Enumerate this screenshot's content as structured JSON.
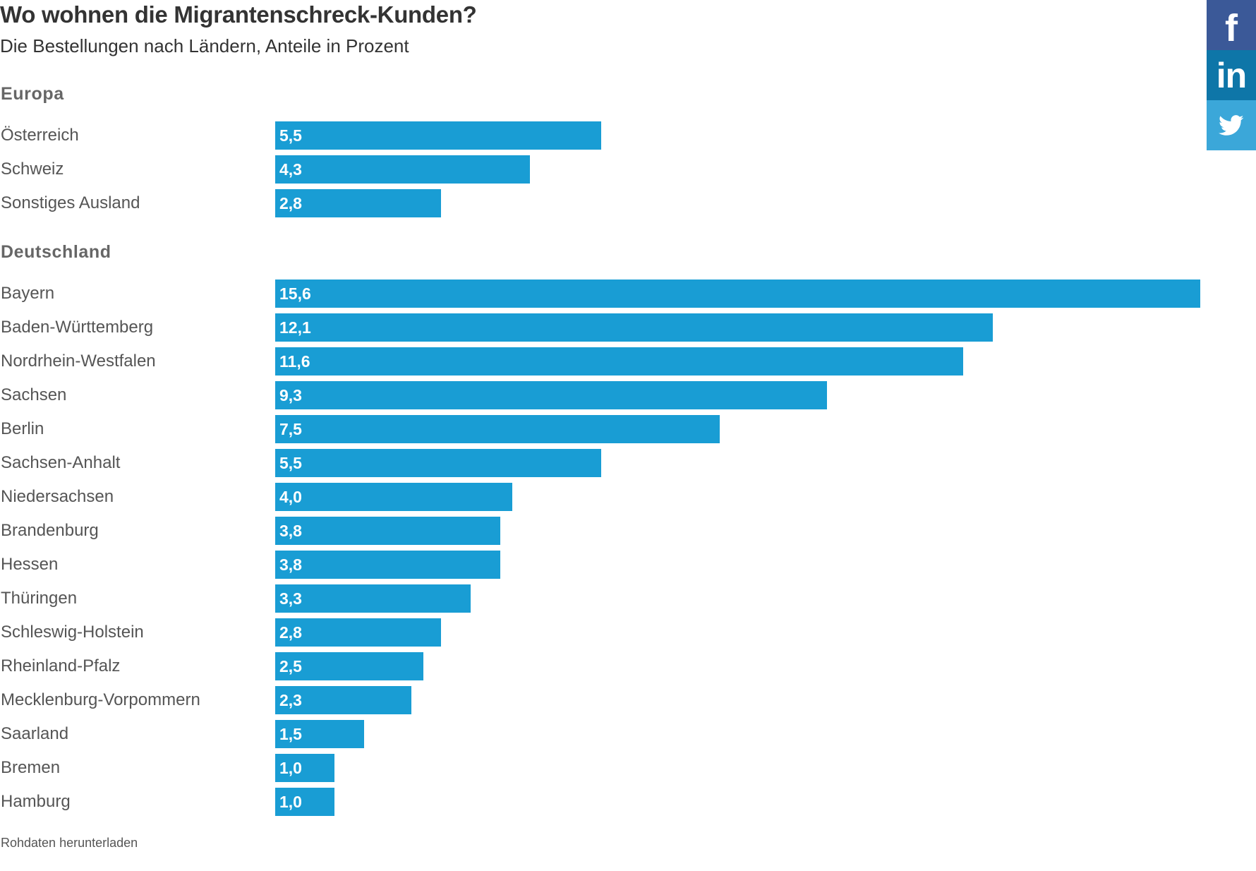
{
  "header": {
    "title": "Wo wohnen die Migrantenschreck-Kunden?",
    "subtitle": "Die Bestellungen nach Ländern, Anteile in Prozent"
  },
  "colors": {
    "bar": "#199dd4",
    "facebook": "#3b5998",
    "linkedin": "#0e76a8",
    "twitter": "#3ba7d9"
  },
  "chart_data": {
    "type": "bar",
    "orientation": "horizontal",
    "xlim": [
      0,
      15.6
    ],
    "grid": false,
    "legend": "none",
    "groups": [
      {
        "name": "Europa",
        "categories": [
          "Österreich",
          "Schweiz",
          "Sonstiges Ausland"
        ],
        "values": [
          5.5,
          4.3,
          2.8
        ],
        "labels": [
          "5,5",
          "4,3",
          "2,8"
        ]
      },
      {
        "name": "Deutschland",
        "categories": [
          "Bayern",
          "Baden-Württemberg",
          "Nordrhein-Westfalen",
          "Sachsen",
          "Berlin",
          "Sachsen-Anhalt",
          "Niedersachsen",
          "Brandenburg",
          "Hessen",
          "Thüringen",
          "Schleswig-Holstein",
          "Rheinland-Pfalz",
          "Mecklenburg-Vorpommern",
          "Saarland",
          "Bremen",
          "Hamburg"
        ],
        "values": [
          15.6,
          12.1,
          11.6,
          9.3,
          7.5,
          5.5,
          4.0,
          3.8,
          3.8,
          3.3,
          2.8,
          2.5,
          2.3,
          1.5,
          1.0,
          1.0
        ],
        "labels": [
          "15,6",
          "12,1",
          "11,6",
          "9,3",
          "7,5",
          "5,5",
          "4,0",
          "3,8",
          "3,8",
          "3,3",
          "2,8",
          "2,5",
          "2,3",
          "1,5",
          "1,0",
          "1,0"
        ]
      }
    ]
  },
  "footer": {
    "download_label": "Rohdaten herunterladen"
  },
  "share": {
    "icons": [
      "facebook-icon",
      "linkedin-icon",
      "twitter-icon"
    ]
  }
}
